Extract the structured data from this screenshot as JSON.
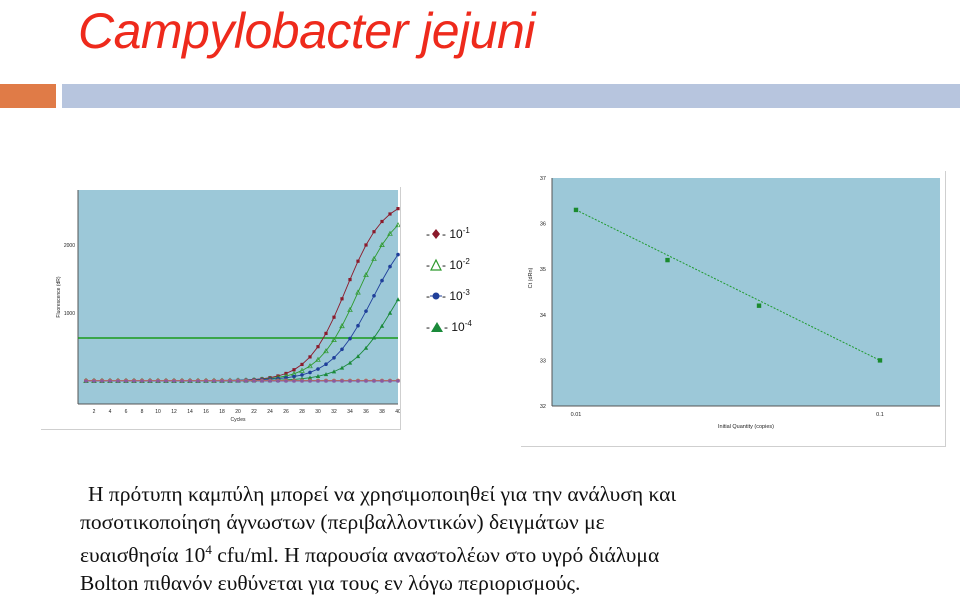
{
  "title": "Campylobacter jejuni",
  "colors": {
    "title": "#ee2a1c",
    "bar_orange": "#e07b47",
    "bar_blue": "#b7c5de",
    "plot_bg": "#9cc8d8",
    "threshold": "#1a9a1a"
  },
  "legend": [
    {
      "prefix": "-",
      "marker": "diamond",
      "suffix": "- 10",
      "exp": "-1",
      "color": "#8b1a2b"
    },
    {
      "prefix": "-",
      "marker": "triangle-open",
      "suffix": "- 10",
      "exp": "-2",
      "color": "#2e9a2e"
    },
    {
      "prefix": "-",
      "marker": "circle",
      "suffix": "- 10",
      "exp": "-3",
      "color": "#1f3f9a"
    },
    {
      "prefix": "-",
      "marker": "triangle",
      "suffix": "- 10",
      "exp": "-4",
      "color": "#1a8a3a"
    }
  ],
  "chart_data": [
    {
      "type": "line",
      "xlabel": "Cycles",
      "ylabel": "Fluorescence (dR)",
      "x_ticks": [
        "2",
        "4",
        "6",
        "8",
        "10",
        "12",
        "14",
        "16",
        "18",
        "20",
        "22",
        "24",
        "26",
        "28",
        "30",
        "32",
        "34",
        "36",
        "38",
        "40"
      ],
      "y_ticks": [
        "1000",
        "2000"
      ],
      "xlim": [
        0,
        40
      ],
      "threshold": 1000,
      "grid": false
    },
    {
      "type": "scatter",
      "xlabel": "Initial Quantity (copies)",
      "ylabel": "Ct (dRn)",
      "x_scale": "log",
      "x_ticks": [
        "0.01",
        "0.1"
      ],
      "y_ticks": [
        "32",
        "33",
        "34",
        "35",
        "36",
        "37"
      ],
      "ylim": [
        32,
        37
      ],
      "points": [
        {
          "x": 0.01,
          "y": 36.3
        },
        {
          "x": 0.02,
          "y": 35.2
        },
        {
          "x": 0.04,
          "y": 34.2
        },
        {
          "x": 0.1,
          "y": 33.0
        }
      ],
      "grid": false
    }
  ],
  "body": {
    "line1": "Η πρότυπη καμπύλη μπορεί να χρησιμοποιηθεί για την ανάλυση και",
    "line2": "ποσοτικοποίηση άγνωστων (περιβαλλοντικών) δειγμάτων με",
    "line3_a": "ευαισθησία 10",
    "line3_exp": "4",
    "line3_b": " cfu/ml. Η παρουσία αναστολέων στο υγρό διάλυμα",
    "line4": "Bolton πιθανόν ευθύνεται για τους εν λόγω περιορισμούς."
  }
}
